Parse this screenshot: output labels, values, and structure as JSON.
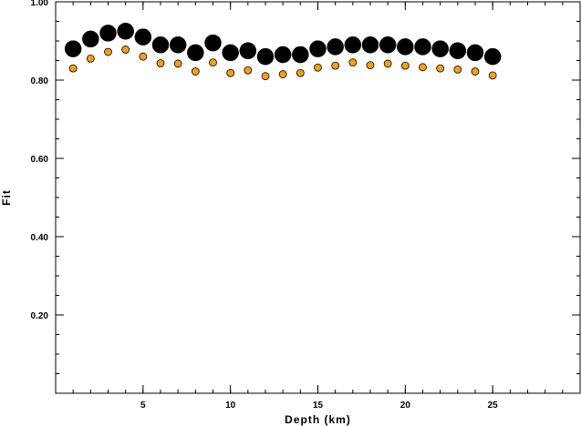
{
  "chart_data": {
    "type": "scatter",
    "title": "",
    "xlabel": "Depth (km)",
    "ylabel": "Fit",
    "xlim": [
      0,
      30
    ],
    "ylim": [
      0,
      1.0
    ],
    "x_ticks": [
      5,
      10,
      15,
      20,
      25
    ],
    "x_tick_labels": [
      "5",
      "10",
      "15",
      "20",
      "25"
    ],
    "y_ticks": [
      0.2,
      0.4,
      0.6,
      0.8,
      1.0
    ],
    "y_tick_labels": [
      "0.20",
      "0.40",
      "0.60",
      "0.80",
      "1.00"
    ],
    "grid": false,
    "colors": {
      "orange_points": "#f0a020",
      "mechanism_fill": "#000000",
      "mechanism_bg": "#ffffff"
    },
    "series": [
      {
        "marker": "focal-mechanism",
        "x": [
          1,
          2,
          3,
          4,
          5,
          6,
          7,
          8,
          9,
          10,
          11,
          12,
          13,
          14,
          15,
          16,
          17,
          18,
          19,
          20,
          21,
          22,
          23,
          24,
          25
        ],
        "y": [
          0.88,
          0.905,
          0.92,
          0.925,
          0.91,
          0.89,
          0.89,
          0.87,
          0.895,
          0.87,
          0.875,
          0.86,
          0.865,
          0.865,
          0.88,
          0.885,
          0.89,
          0.89,
          0.89,
          0.885,
          0.885,
          0.88,
          0.875,
          0.87,
          0.86
        ]
      },
      {
        "marker": "circle",
        "x": [
          1,
          2,
          3,
          4,
          5,
          6,
          7,
          8,
          9,
          10,
          11,
          12,
          13,
          14,
          15,
          16,
          17,
          18,
          19,
          20,
          21,
          22,
          23,
          24,
          25
        ],
        "y": [
          0.83,
          0.855,
          0.872,
          0.878,
          0.86,
          0.843,
          0.842,
          0.822,
          0.845,
          0.818,
          0.825,
          0.81,
          0.815,
          0.818,
          0.832,
          0.837,
          0.845,
          0.838,
          0.842,
          0.837,
          0.833,
          0.83,
          0.827,
          0.822,
          0.812
        ]
      }
    ]
  }
}
